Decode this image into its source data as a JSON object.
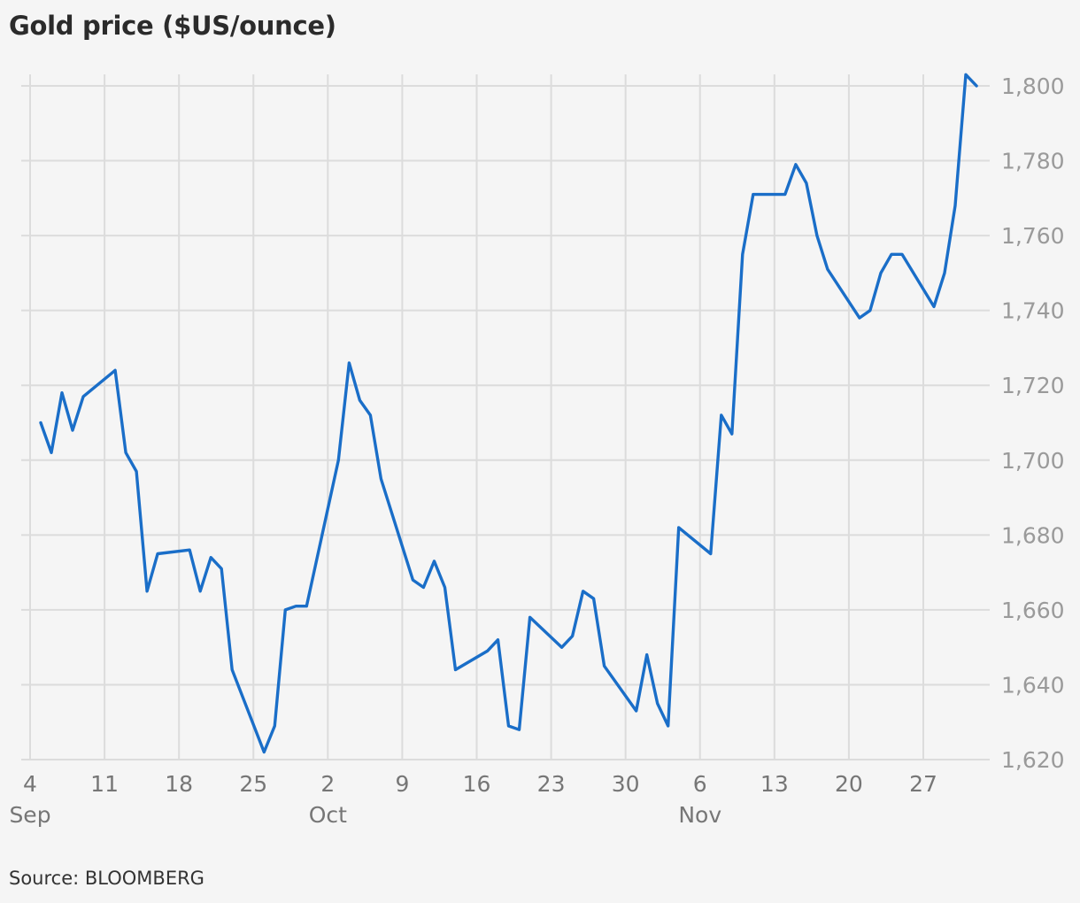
{
  "chart_data": {
    "type": "line",
    "title": "Gold price ($US/ounce)",
    "source": "Source: BLOOMBERG",
    "xlabel": "",
    "ylabel": "",
    "ylim": [
      1620,
      1800
    ],
    "yticks": [
      1620,
      1640,
      1660,
      1680,
      1700,
      1720,
      1740,
      1760,
      1780,
      1800
    ],
    "ytick_labels": [
      "1,620",
      "1,640",
      "1,660",
      "1,680",
      "1,700",
      "1,720",
      "1,740",
      "1,760",
      "1,780",
      "1,800"
    ],
    "y_axis_side": "right",
    "grid": true,
    "legend": "none",
    "line_color": "#1a6ec8",
    "xlim": [
      "2022-09-04",
      "2022-12-01"
    ],
    "xticks": [
      {
        "date": "2022-09-04",
        "label": "4"
      },
      {
        "date": "2022-09-11",
        "label": "11"
      },
      {
        "date": "2022-09-18",
        "label": "18"
      },
      {
        "date": "2022-09-25",
        "label": "25"
      },
      {
        "date": "2022-10-02",
        "label": "2"
      },
      {
        "date": "2022-10-09",
        "label": "9"
      },
      {
        "date": "2022-10-16",
        "label": "16"
      },
      {
        "date": "2022-10-23",
        "label": "23"
      },
      {
        "date": "2022-10-30",
        "label": "30"
      },
      {
        "date": "2022-11-06",
        "label": "6"
      },
      {
        "date": "2022-11-13",
        "label": "13"
      },
      {
        "date": "2022-11-20",
        "label": "20"
      },
      {
        "date": "2022-11-27",
        "label": "27"
      }
    ],
    "month_labels": [
      {
        "date": "2022-09-04",
        "label": "Sep"
      },
      {
        "date": "2022-10-02",
        "label": "Oct"
      },
      {
        "date": "2022-11-06",
        "label": "Nov"
      }
    ],
    "series": [
      {
        "x": [
          "2022-09-05",
          "2022-09-06",
          "2022-09-07",
          "2022-09-08",
          "2022-09-09",
          "2022-09-12",
          "2022-09-13",
          "2022-09-14",
          "2022-09-15",
          "2022-09-16",
          "2022-09-19",
          "2022-09-20",
          "2022-09-21",
          "2022-09-22",
          "2022-09-23",
          "2022-09-26",
          "2022-09-27",
          "2022-09-28",
          "2022-09-29",
          "2022-09-30",
          "2022-10-03",
          "2022-10-04",
          "2022-10-05",
          "2022-10-06",
          "2022-10-07",
          "2022-10-10",
          "2022-10-11",
          "2022-10-12",
          "2022-10-13",
          "2022-10-14",
          "2022-10-17",
          "2022-10-18",
          "2022-10-19",
          "2022-10-20",
          "2022-10-21",
          "2022-10-24",
          "2022-10-25",
          "2022-10-26",
          "2022-10-27",
          "2022-10-28",
          "2022-10-31",
          "2022-11-01",
          "2022-11-02",
          "2022-11-03",
          "2022-11-04",
          "2022-11-07",
          "2022-11-08",
          "2022-11-09",
          "2022-11-10",
          "2022-11-11",
          "2022-11-14",
          "2022-11-15",
          "2022-11-16",
          "2022-11-17",
          "2022-11-18",
          "2022-11-21",
          "2022-11-22",
          "2022-11-23",
          "2022-11-24",
          "2022-11-25",
          "2022-11-28",
          "2022-11-29",
          "2022-11-30",
          "2022-12-01",
          "2022-12-02"
        ],
        "values": [
          1710,
          1702,
          1718,
          1708,
          1717,
          1724,
          1702,
          1697,
          1665,
          1675,
          1676,
          1665,
          1674,
          1671,
          1644,
          1622,
          1629,
          1660,
          1661,
          1661,
          1700,
          1726,
          1716,
          1712,
          1695,
          1668,
          1666,
          1673,
          1666,
          1644,
          1649,
          1652,
          1629,
          1628,
          1658,
          1650,
          1653,
          1665,
          1663,
          1645,
          1633,
          1648,
          1635,
          1629,
          1682,
          1675,
          1712,
          1707,
          1755,
          1771,
          1771,
          1779,
          1774,
          1760,
          1751,
          1738,
          1740,
          1750,
          1755,
          1755,
          1741,
          1750,
          1768,
          1803,
          1800
        ]
      }
    ]
  }
}
